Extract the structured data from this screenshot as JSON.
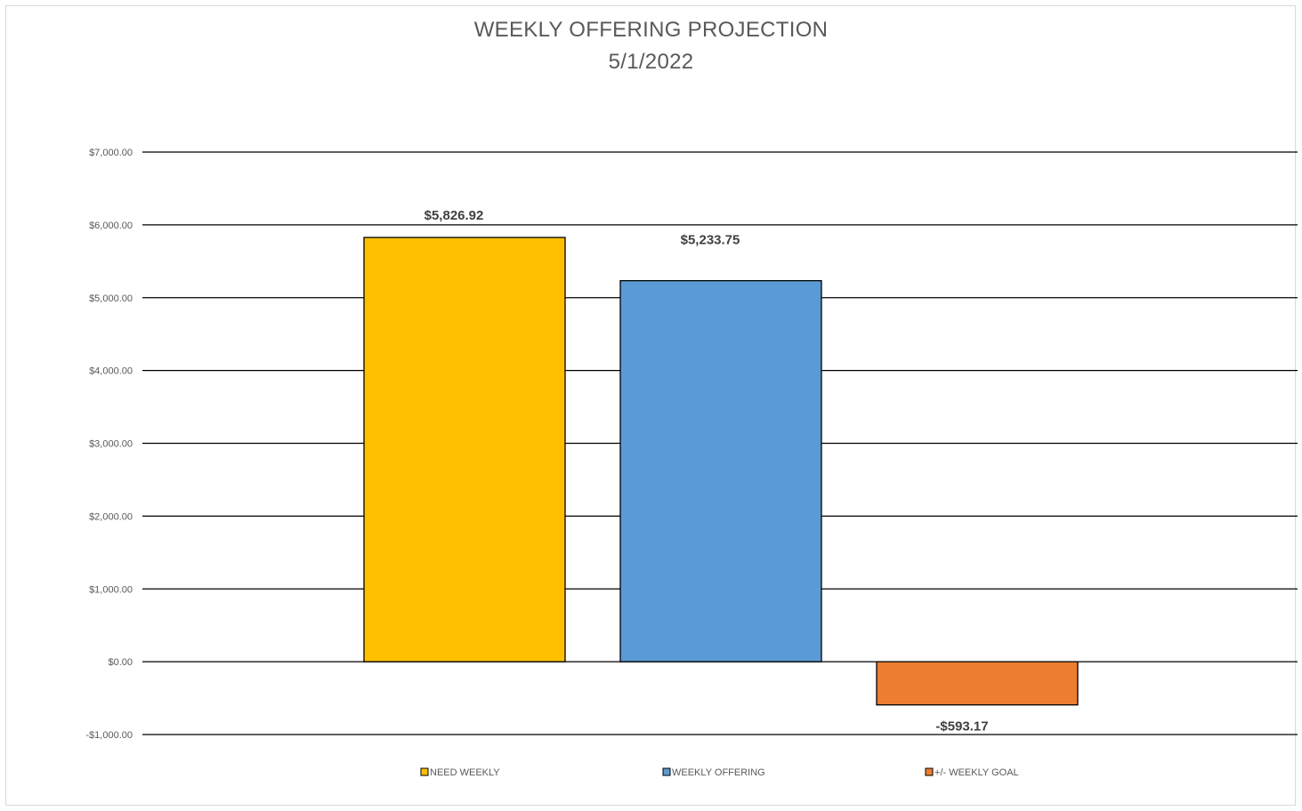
{
  "chart_data": {
    "type": "bar",
    "title": "WEEKLY OFFERING PROJECTION",
    "subtitle": "5/1/2022",
    "categories": [
      "NEED WEEKLY",
      "WEEKLY OFFERING",
      "+/- WEEKLY GOAL"
    ],
    "values": [
      5826.92,
      5233.75,
      -593.17
    ],
    "data_labels": [
      "$5,826.92",
      "$5,233.75",
      "-$593.17"
    ],
    "colors": [
      "#FFC000",
      "#5B9BD5",
      "#ED7D31"
    ],
    "ylim": [
      -1000,
      7000
    ],
    "yticks": [
      7000,
      6000,
      5000,
      4000,
      3000,
      2000,
      1000,
      0,
      -1000
    ],
    "ytick_labels": [
      "$7,000.00",
      "$6,000.00",
      "$5,000.00",
      "$4,000.00",
      "$3,000.00",
      "$2,000.00",
      "$1,000.00",
      "$0.00",
      "-$1,000.00"
    ],
    "grid": true,
    "legend": {
      "position": "bottom",
      "entries": [
        "NEED WEEKLY",
        "WEEKLY OFFERING",
        "+/- WEEKLY GOAL"
      ]
    }
  }
}
